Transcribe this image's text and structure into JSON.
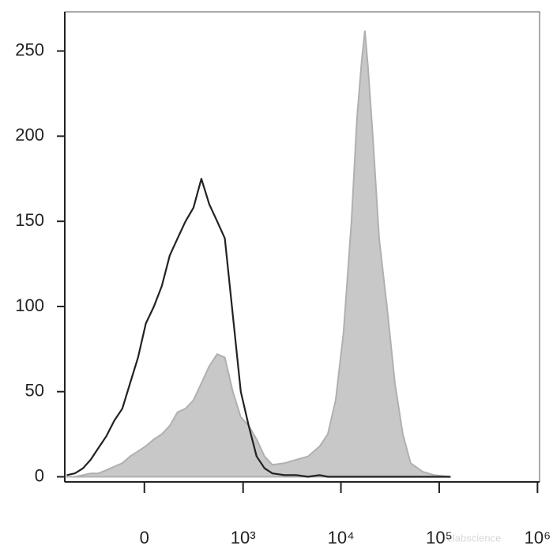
{
  "chart_data": {
    "type": "histogram_overlay",
    "xscale": "biexponential",
    "xlim": [
      -630,
      1050000
    ],
    "ylim": [
      -3,
      273
    ],
    "xticks": [
      {
        "value": 0,
        "label": "0"
      },
      {
        "value": 1000,
        "label": "10³"
      },
      {
        "value": 10000,
        "label": "10⁴"
      },
      {
        "value": 100000,
        "label": "10⁵"
      },
      {
        "value": 1000000,
        "label": "10⁶"
      }
    ],
    "yticks": [
      0,
      50,
      100,
      150,
      200,
      250
    ],
    "x": [
      -600,
      -490,
      -398,
      -324,
      -259,
      -202,
      -153,
      -108,
      -68,
      -30,
      7,
      45,
      84,
      126,
      172,
      224,
      284,
      354,
      436,
      532,
      644,
      782,
      946,
      1144,
      1378,
      1664,
      2004,
      2650,
      3500,
      4620,
      6100,
      7340,
      8840,
      10640,
      12800,
      14540,
      16320,
      17540,
      18880,
      21100,
      24460,
      29400,
      35400,
      42600,
      51200,
      67800,
      89400,
      130000
    ],
    "series": [
      {
        "color": "#c8c8c8",
        "edge_color": "#b0b0b0",
        "filled": true,
        "values": [
          0,
          0,
          1,
          2,
          2,
          4,
          6,
          8,
          12,
          15,
          18,
          22,
          25,
          30,
          38,
          40,
          45,
          55,
          65,
          72,
          70,
          50,
          35,
          30,
          22,
          12,
          7,
          8,
          10,
          12,
          18,
          25,
          45,
          85,
          150,
          210,
          245,
          262,
          240,
          200,
          140,
          100,
          55,
          25,
          8,
          3,
          1,
          0
        ]
      },
      {
        "color": "#222222",
        "filled": false,
        "values": [
          1,
          2,
          5,
          10,
          17,
          24,
          33,
          40,
          55,
          70,
          90,
          100,
          112,
          130,
          140,
          150,
          158,
          175,
          160,
          150,
          140,
          95,
          50,
          30,
          12,
          5,
          2,
          1,
          1,
          0,
          1,
          0,
          0,
          0,
          0,
          0,
          0,
          0,
          0,
          0,
          0,
          0,
          0,
          0,
          0,
          0,
          0,
          0
        ]
      }
    ],
    "watermark": "elabscience"
  }
}
